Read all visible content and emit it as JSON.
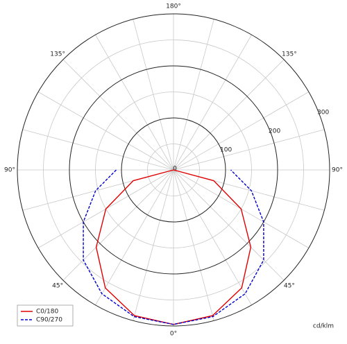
{
  "chart_data": {
    "type": "polar",
    "angles": [
      -90,
      -75,
      -60,
      -45,
      -30,
      -15,
      0,
      15,
      30,
      45,
      60,
      75,
      90
    ],
    "series": [
      {
        "name": "C0/180",
        "color": "#e00000",
        "dash": false,
        "values": [
          0,
          80,
          150,
          210,
          262,
          290,
          297,
          290,
          262,
          210,
          150,
          80,
          0
        ]
      },
      {
        "name": "C90/270",
        "color": "#0000cc",
        "dash": true,
        "values": [
          110,
          155,
          200,
          245,
          275,
          292,
          297,
          292,
          275,
          245,
          200,
          155,
          110
        ]
      }
    ],
    "rlim": [
      0,
      300
    ],
    "rticks": [
      0,
      100,
      200,
      300
    ],
    "rminorticks": [
      50,
      150,
      250
    ],
    "angle_grid": [
      0,
      15,
      30,
      45,
      60,
      75,
      90,
      105,
      120,
      135,
      150,
      165,
      180,
      195,
      210,
      225,
      240,
      255,
      270,
      285,
      300,
      315,
      330,
      345
    ],
    "angle_labels": [
      {
        "value": 0,
        "label": "0°"
      },
      {
        "value": 45,
        "label": "45°"
      },
      {
        "value": 90,
        "label": "90°"
      },
      {
        "value": 135,
        "label": "135°"
      },
      {
        "value": 180,
        "label": "180°"
      },
      {
        "value": 225,
        "label": "135°"
      },
      {
        "value": 270,
        "label": "90°"
      },
      {
        "value": 315,
        "label": "45°"
      }
    ],
    "unit_label": "cd/klm",
    "legend": "lower left"
  }
}
